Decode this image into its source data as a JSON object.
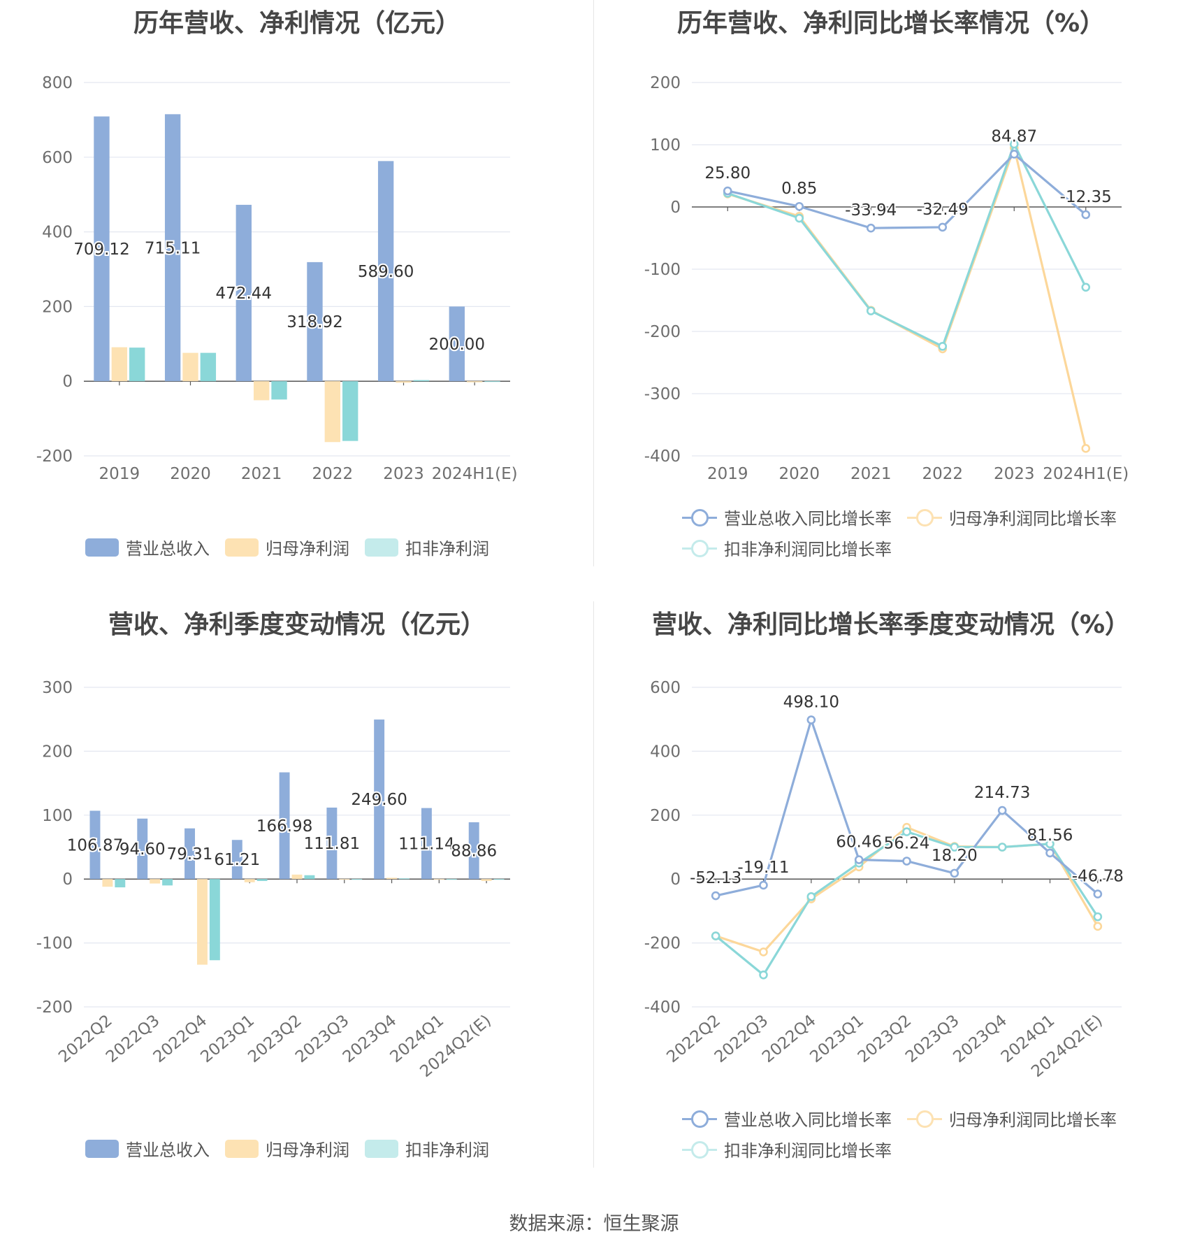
{
  "colors": {
    "revenue": "#8eadda",
    "net_profit": "#fde2b3",
    "deducted": "#8ad7d8",
    "revenue_line": "#8eadda",
    "net_line": "#fcd79a",
    "deducted_line": "#8ad7d8"
  },
  "panels": [
    {
      "title": "历年营收、净利情况（亿元）",
      "legend": [
        "营业总收入",
        "归母净利润",
        "扣非净利润"
      ]
    },
    {
      "title": "历年营收、净利同比增长率情况（%）",
      "legend": [
        "营业总收入同比增长率",
        "归母净利润同比增长率",
        "扣非净利润同比增长率"
      ]
    },
    {
      "title": "营收、净利季度变动情况（亿元）",
      "legend": [
        "营业总收入",
        "归母净利润",
        "扣非净利润"
      ]
    },
    {
      "title": "营收、净利同比增长率季度变动情况（%）",
      "legend": [
        "营业总收入同比增长率",
        "归母净利润同比增长率",
        "扣非净利润同比增长率"
      ]
    }
  ],
  "footer": "数据来源：恒生聚源",
  "chart_data": [
    {
      "type": "bar",
      "title": "历年营收、净利情况（亿元）",
      "categories": [
        "2019",
        "2020",
        "2021",
        "2022",
        "2023",
        "2024H1(E)"
      ],
      "ylim": [
        -200,
        800
      ],
      "yticks": [
        800,
        600,
        400,
        200,
        0,
        -200
      ],
      "grid": true,
      "legend_position": "bottom",
      "series": [
        {
          "name": "营业总收入",
          "values": [
            709.12,
            715.11,
            472.44,
            318.92,
            589.6,
            200.0
          ],
          "labels": [
            "709.12",
            "715.11",
            "472.44",
            "318.92",
            "589.60",
            "200.00"
          ]
        },
        {
          "name": "归母净利润",
          "values": [
            91,
            76,
            -51,
            -163,
            -4,
            -3
          ]
        },
        {
          "name": "扣非净利润",
          "values": [
            90,
            76,
            -49,
            -160,
            3,
            0
          ]
        }
      ]
    },
    {
      "type": "line",
      "title": "历年营收、净利同比增长率情况（%）",
      "categories": [
        "2019",
        "2020",
        "2021",
        "2022",
        "2023",
        "2024H1(E)"
      ],
      "ylim": [
        -400,
        200
      ],
      "yticks": [
        200,
        100,
        0,
        -100,
        -200,
        -300,
        -400
      ],
      "grid": true,
      "legend_position": "bottom",
      "series": [
        {
          "name": "营业总收入同比增长率",
          "values": [
            25.8,
            0.85,
            -33.94,
            -32.49,
            84.87,
            -12.35
          ],
          "labels": [
            "25.80",
            "0.85",
            "-33.94",
            "-32.49",
            "84.87",
            "-12.35"
          ]
        },
        {
          "name": "归母净利润同比增长率",
          "values": [
            21,
            -15,
            -166,
            -228,
            95,
            -388
          ]
        },
        {
          "name": "扣非净利润同比增长率",
          "values": [
            22,
            -18,
            -167,
            -224,
            101,
            -129
          ]
        }
      ]
    },
    {
      "type": "bar",
      "title": "营收、净利季度变动情况（亿元）",
      "categories": [
        "2022Q2",
        "2022Q3",
        "2022Q4",
        "2023Q1",
        "2023Q2",
        "2023Q3",
        "2023Q4",
        "2024Q1",
        "2024Q2(E)"
      ],
      "ylim": [
        -200,
        300
      ],
      "yticks": [
        300,
        200,
        100,
        0,
        -100,
        -200
      ],
      "grid": true,
      "legend_position": "bottom",
      "series": [
        {
          "name": "营业总收入",
          "values": [
            106.87,
            94.6,
            79.31,
            61.21,
            166.98,
            111.81,
            249.6,
            111.14,
            88.86
          ],
          "labels": [
            "106.87",
            "94.60",
            "79.31",
            "61.21",
            "166.98",
            "111.81",
            "249.60",
            "111.14",
            "88.86"
          ]
        },
        {
          "name": "归母净利润",
          "values": [
            -12,
            -7,
            -134,
            -5,
            7,
            0,
            2,
            0,
            -3
          ]
        },
        {
          "name": "扣非净利润",
          "values": [
            -13,
            -10,
            -127,
            -3,
            6,
            0,
            1,
            0,
            0
          ]
        }
      ]
    },
    {
      "type": "line",
      "title": "营收、净利同比增长率季度变动情况（%）",
      "categories": [
        "2022Q2",
        "2022Q3",
        "2022Q4",
        "2023Q1",
        "2023Q2",
        "2023Q3",
        "2023Q4",
        "2024Q1",
        "2024Q2(E)"
      ],
      "ylim": [
        -400,
        600
      ],
      "yticks": [
        600,
        400,
        200,
        0,
        -200,
        -400
      ],
      "grid": true,
      "legend_position": "bottom",
      "series": [
        {
          "name": "营业总收入同比增长率",
          "values": [
            -52.13,
            -19.11,
            498.1,
            60.46,
            56.24,
            18.2,
            214.73,
            81.56,
            -46.78
          ],
          "labels": [
            "-52.13",
            "-19.11",
            "498.10",
            "60.46",
            "56.24",
            "18.20",
            "214.73",
            "81.56",
            "-46.78"
          ]
        },
        {
          "name": "归母净利润同比增长率",
          "values": [
            -178,
            -228,
            -62,
            38,
            162,
            102,
            100,
            110,
            -148
          ]
        },
        {
          "name": "扣非净利润同比增长率",
          "values": [
            -178,
            -300,
            -55,
            50,
            148,
            100,
            100,
            110,
            -118
          ]
        }
      ]
    }
  ]
}
